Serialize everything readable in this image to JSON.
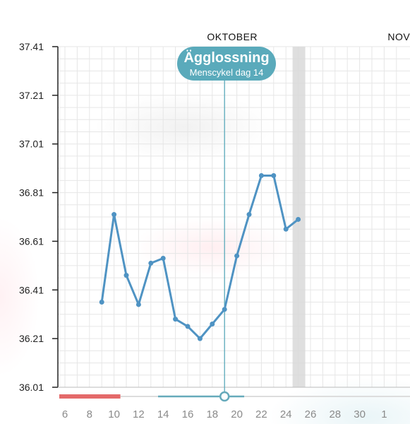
{
  "colors": {
    "line": "#4f93c3",
    "ovulation": "#5aaabb",
    "grid": "#e6e6e6",
    "period": "#e46a6a",
    "scrub": "#66aabb",
    "today_band": "#d9d9d9"
  },
  "chart_data": {
    "type": "line",
    "title": "",
    "xlabel": "",
    "ylabel": "",
    "ylim": [
      36.01,
      37.41
    ],
    "y_ticks": [
      "37.41",
      "37.21",
      "37.01",
      "36.81",
      "36.61",
      "36.41",
      "36.21",
      "36.01"
    ],
    "x_range": [
      "2023-10-05",
      "2023-11-02"
    ],
    "x_ticks": [
      {
        "date": "2023-10-06",
        "label": "6"
      },
      {
        "date": "2023-10-08",
        "label": "8"
      },
      {
        "date": "2023-10-10",
        "label": "10"
      },
      {
        "date": "2023-10-12",
        "label": "12"
      },
      {
        "date": "2023-10-14",
        "label": "14"
      },
      {
        "date": "2023-10-16",
        "label": "16"
      },
      {
        "date": "2023-10-18",
        "label": "18"
      },
      {
        "date": "2023-10-20",
        "label": "20"
      },
      {
        "date": "2023-10-22",
        "label": "22"
      },
      {
        "date": "2023-10-24",
        "label": "24"
      },
      {
        "date": "2023-10-26",
        "label": "26"
      },
      {
        "date": "2023-10-28",
        "label": "28"
      },
      {
        "date": "2023-10-30",
        "label": "30"
      },
      {
        "date": "2023-11-01",
        "label": "1"
      }
    ],
    "months": [
      {
        "label": "OKTOBER",
        "date": "2023-10-19"
      },
      {
        "label": "NOVEMBER",
        "date": "2023-11-01"
      }
    ],
    "grid": true,
    "series": [
      {
        "values": [
          {
            "x": "2023-10-09",
            "y": 36.36
          },
          {
            "x": "2023-10-10",
            "y": 36.72
          },
          {
            "x": "2023-10-11",
            "y": 36.47
          },
          {
            "x": "2023-10-12",
            "y": 36.35
          },
          {
            "x": "2023-10-13",
            "y": 36.52
          },
          {
            "x": "2023-10-14",
            "y": 36.54
          },
          {
            "x": "2023-10-15",
            "y": 36.29
          },
          {
            "x": "2023-10-16",
            "y": 36.26
          },
          {
            "x": "2023-10-17",
            "y": 36.21
          },
          {
            "x": "2023-10-18",
            "y": 36.27
          },
          {
            "x": "2023-10-19",
            "y": 36.33
          },
          {
            "x": "2023-10-20",
            "y": 36.55
          },
          {
            "x": "2023-10-21",
            "y": 36.72
          },
          {
            "x": "2023-10-22",
            "y": 36.88
          },
          {
            "x": "2023-10-23",
            "y": 36.88
          },
          {
            "x": "2023-10-24",
            "y": 36.66
          },
          {
            "x": "2023-10-25",
            "y": 36.7
          }
        ]
      }
    ],
    "ovulation": {
      "date": "2023-10-19",
      "title": "Ägglossning",
      "subtitle": "Menscykel dag 14"
    },
    "today": "2023-10-25",
    "period": {
      "start": "2023-10-05",
      "end": "2023-10-10"
    }
  }
}
